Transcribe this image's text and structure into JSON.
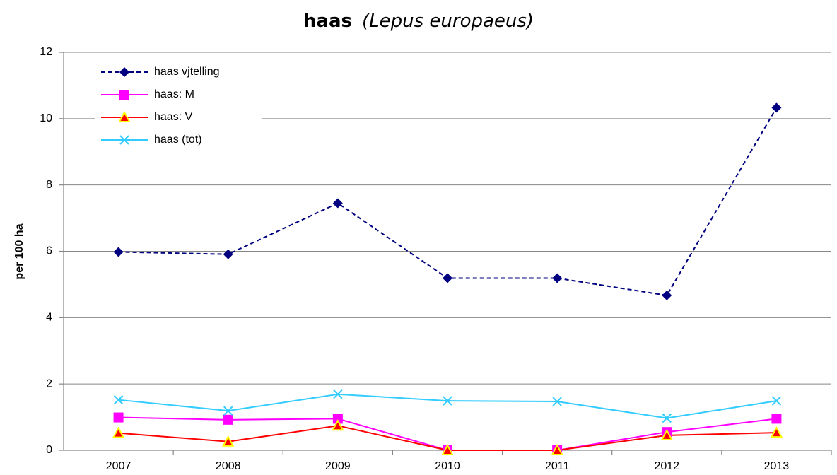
{
  "chart_data": {
    "type": "line",
    "title": "haas",
    "subtitle": "(Lepus europaeus)",
    "y_label": "per 100 ha",
    "categories": [
      "2007",
      "2008",
      "2009",
      "2010",
      "2011",
      "2012",
      "2013"
    ],
    "series": [
      {
        "name": "haas vjtelling",
        "color": "#000080",
        "marker": "diamond",
        "dash": true,
        "values": [
          5.98,
          5.91,
          7.45,
          5.19,
          5.19,
          4.67,
          10.33
        ]
      },
      {
        "name": "haas: M",
        "color": "#ff00ff",
        "marker": "square",
        "dash": false,
        "values": [
          0.99,
          0.92,
          0.95,
          0,
          0,
          0.55,
          0.95
        ]
      },
      {
        "name": "haas: V",
        "color": "#ff0000",
        "marker": "triangle",
        "dash": false,
        "values": [
          0.52,
          0.26,
          0.74,
          0,
          0,
          0.45,
          0.53
        ]
      },
      {
        "name": "haas (tot)",
        "color": "#33ccff",
        "marker": "x",
        "dash": false,
        "values": [
          1.52,
          1.19,
          1.69,
          1.49,
          1.47,
          0.97,
          1.49
        ]
      }
    ],
    "ylim": [
      0,
      12
    ],
    "yticks": [
      0,
      2,
      4,
      6,
      8,
      10,
      12
    ],
    "grid": true,
    "legend": "upper left"
  }
}
